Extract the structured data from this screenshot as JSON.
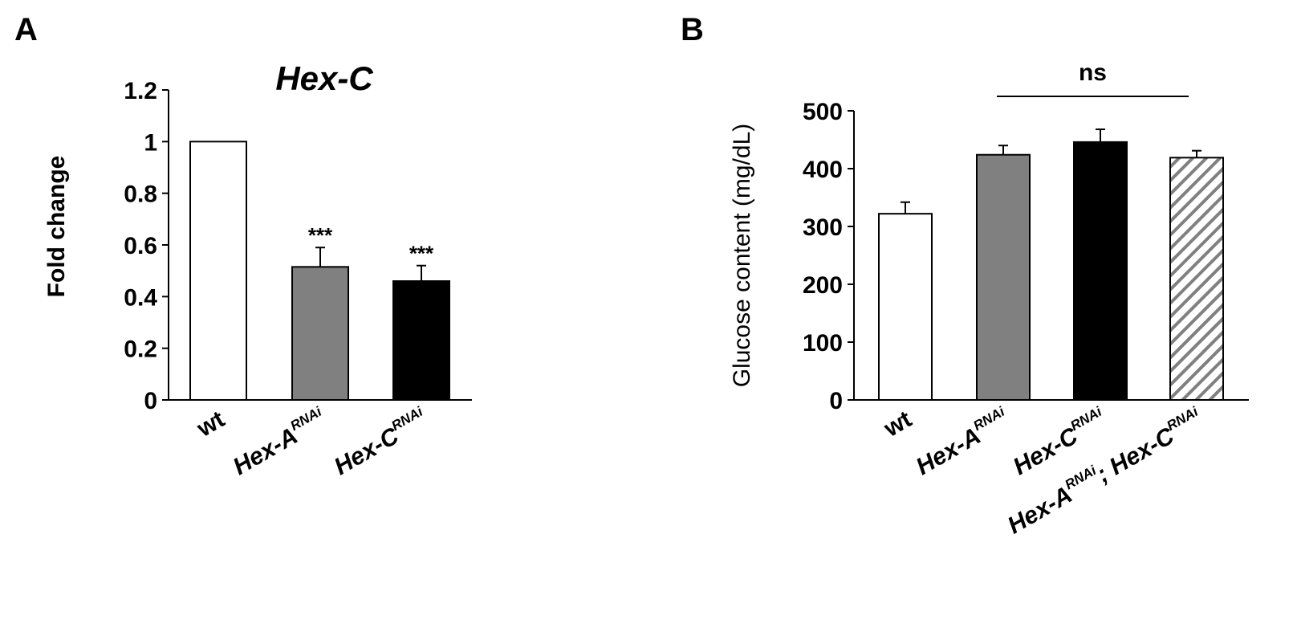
{
  "chart_data": [
    {
      "panel": "A",
      "type": "bar",
      "title": "Hex-C",
      "xlabel": "",
      "ylabel": "Fold change",
      "ylim": [
        0,
        1.2
      ],
      "yticks": [
        "0",
        "0.2",
        "0.4",
        "0.6",
        "0.8",
        "1",
        "1.2"
      ],
      "grid": false,
      "categories": [
        {
          "base": "wt",
          "sup": "",
          "italic": false
        },
        {
          "base": "Hex-A",
          "sup": "RNAi",
          "italic": true
        },
        {
          "base": "Hex-C",
          "sup": "RNAi",
          "italic": true
        }
      ],
      "values": [
        1.0,
        0.515,
        0.46
      ],
      "errors": [
        0,
        0.075,
        0.06
      ],
      "annotations": [
        "",
        "***",
        "***"
      ],
      "colors": {
        "fills": [
          "#ffffff",
          "#808080",
          "#000000"
        ],
        "stroke": "#000000"
      }
    },
    {
      "panel": "B",
      "type": "bar",
      "title": "",
      "xlabel": "",
      "ylabel": "Glucose content (mg/dL)",
      "ylim": [
        0,
        500
      ],
      "yticks": [
        "0",
        "100",
        "200",
        "300",
        "400",
        "500"
      ],
      "grid": false,
      "categories": [
        {
          "base": "wt",
          "sup": "",
          "italic": false
        },
        {
          "base": "Hex-A",
          "sup": "RNAi",
          "italic": true
        },
        {
          "base": "Hex-C",
          "sup": "RNAi",
          "italic": true
        },
        {
          "base": "Hex-A",
          "sup": "RNAi",
          "base2": "; Hex-C",
          "sup2": "RNAi",
          "italic": true
        }
      ],
      "values": [
        322,
        424,
        446,
        419
      ],
      "errors": [
        20,
        16,
        22,
        12
      ],
      "significance": {
        "label": "ns",
        "from": 1,
        "to": 3
      },
      "colors": {
        "fills": [
          "#ffffff",
          "#808080",
          "#000000",
          "hatch"
        ],
        "stroke": "#000000",
        "hatch": "#808080"
      }
    }
  ]
}
